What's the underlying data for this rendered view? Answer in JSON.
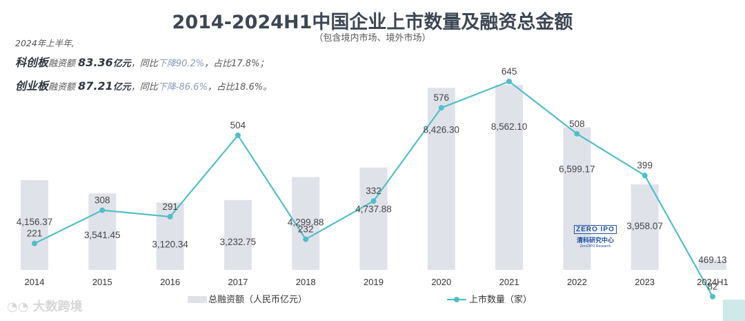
{
  "title": "2014-2024H1中国企业上市数量及融资总金额",
  "subtitle": "（包含境内市场、境外市场）",
  "notes": {
    "line1": "2024年上半年,",
    "line2": {
      "board": "科创板",
      "label": "融资额",
      "amount": "83.36",
      "unit": "亿元",
      "yoy_pre": "，同比",
      "yoy": "下降90.2%",
      "share": "，占比17.8%；"
    },
    "line3": {
      "board": "创业板",
      "label": "融资额",
      "amount": "87.21",
      "unit": "亿元",
      "yoy_pre": "，同比",
      "yoy": "下降-86.6%",
      "share": "，占比18.6%。"
    }
  },
  "watermark": "大数跨境",
  "logo": {
    "line1": "ZERO IPO",
    "line2": "清科研究中心",
    "line3": "Zero2IPO Research"
  },
  "colors": {
    "bar": "#e0e2ea",
    "line": "#4fbfc8",
    "title": "#3d4654"
  },
  "chart_data": {
    "type": "bar+line",
    "categories": [
      "2014",
      "2015",
      "2016",
      "2017",
      "2018",
      "2019",
      "2020",
      "2021",
      "2022",
      "2023",
      "2024H1"
    ],
    "series": [
      {
        "name": "总融资额（人民币亿元）",
        "type": "bar",
        "values": [
          4156.37,
          3541.45,
          3120.34,
          3232.75,
          4299.88,
          4737.88,
          8426.3,
          8562.1,
          6599.17,
          3958.07,
          469.13
        ],
        "labels": [
          "4,156.37",
          "3,541.45",
          "3,120.34",
          "3,232.75",
          "4,299.88",
          "4,737.88",
          "8,426.30",
          "8,562.10",
          "6,599.17",
          "3,958.07",
          "469.13"
        ]
      },
      {
        "name": "上市数量（家）",
        "type": "line",
        "values": [
          221,
          308,
          291,
          504,
          232,
          332,
          576,
          645,
          508,
          399,
          82
        ],
        "labels": [
          "221",
          "308",
          "291",
          "504",
          "232",
          "332",
          "576",
          "645",
          "508",
          "399",
          "82"
        ]
      }
    ],
    "legend": "bottom"
  }
}
